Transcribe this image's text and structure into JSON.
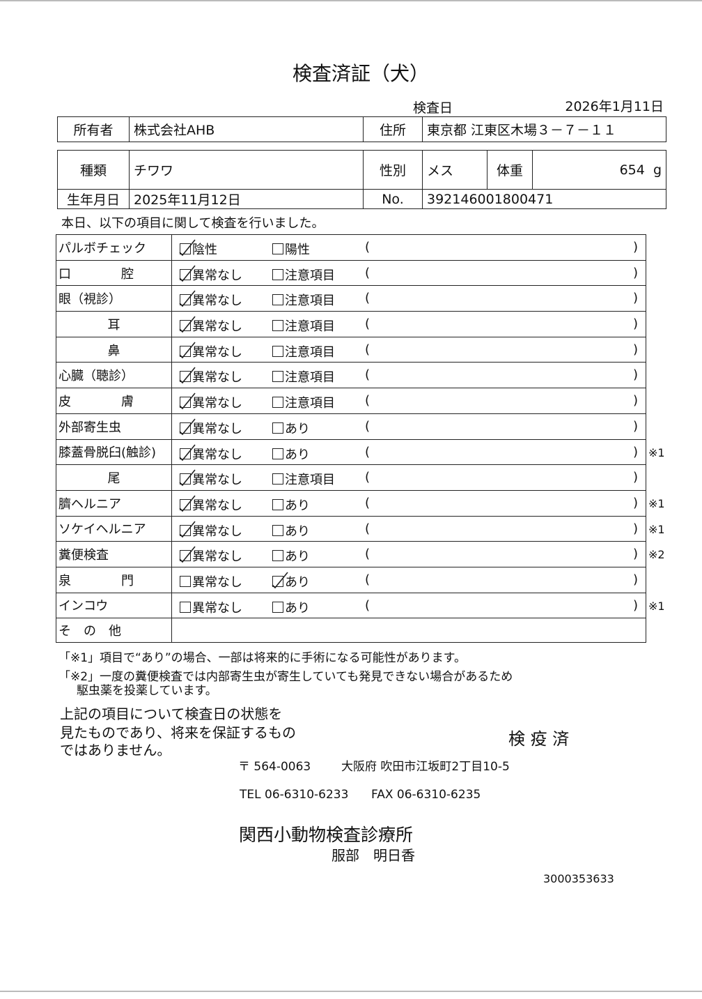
{
  "title": "検査済証（犬）",
  "exam_date_label": "検査日",
  "exam_date": "2026年1月11日",
  "owner": {
    "label": "所有者",
    "value": "株式会社AHB",
    "address_label": "住所",
    "address": "東京都 江東区木場３－７－１１"
  },
  "pet": {
    "breed_label": "種類",
    "breed": "チワワ",
    "sex_label": "性別",
    "sex": "メス",
    "weight_label": "体重",
    "weight": "654",
    "weight_unit": "g",
    "birth_label": "生年月日",
    "birth": "2025年11月12日",
    "no_label": "No.",
    "no": "392146001800471"
  },
  "intro": "本日、以下の項目に関して検査を行いました。",
  "checks": [
    {
      "label": "パルボチェック",
      "opt1": "陰性",
      "opt2": "陽性",
      "checked": 1,
      "note": ""
    },
    {
      "label": "口　　　　腔",
      "opt1": "異常なし",
      "opt2": "注意項目",
      "checked": 1,
      "note": ""
    },
    {
      "label": "眼（視診）",
      "opt1": "異常なし",
      "opt2": "注意項目",
      "checked": 1,
      "note": ""
    },
    {
      "label": "耳",
      "opt1": "異常なし",
      "opt2": "注意項目",
      "checked": 1,
      "note": ""
    },
    {
      "label": "鼻",
      "opt1": "異常なし",
      "opt2": "注意項目",
      "checked": 1,
      "note": ""
    },
    {
      "label": "心臓（聴診）",
      "opt1": "異常なし",
      "opt2": "注意項目",
      "checked": 1,
      "note": ""
    },
    {
      "label": "皮　　　　膚",
      "opt1": "異常なし",
      "opt2": "注意項目",
      "checked": 1,
      "note": ""
    },
    {
      "label": "外部寄生虫",
      "opt1": "異常なし",
      "opt2": "あり",
      "checked": 1,
      "note": ""
    },
    {
      "label": "膝蓋骨脱臼(触診)",
      "opt1": "異常なし",
      "opt2": "あり",
      "checked": 1,
      "note": "※1"
    },
    {
      "label": "尾",
      "opt1": "異常なし",
      "opt2": "注意項目",
      "checked": 1,
      "note": ""
    },
    {
      "label": "臍ヘルニア",
      "opt1": "異常なし",
      "opt2": "あり",
      "checked": 1,
      "note": "※1"
    },
    {
      "label": "ソケイヘルニア",
      "opt1": "異常なし",
      "opt2": "あり",
      "checked": 1,
      "note": "※1"
    },
    {
      "label": "糞便検査",
      "opt1": "異常なし",
      "opt2": "あり",
      "checked": 1,
      "note": "※2"
    },
    {
      "label": "泉　　　　門",
      "opt1": "異常なし",
      "opt2": "あり",
      "checked": 2,
      "note": ""
    },
    {
      "label": "インコウ",
      "opt1": "異常なし",
      "opt2": "あり",
      "checked": 0,
      "note": "※1"
    }
  ],
  "other_label": "そ　の　他",
  "paren_open": "(",
  "paren_close": ")",
  "footnote1": "「※1」項目で“あり”の場合、一部は将来的に手術になる可能性があります。",
  "footnote2a": "「※2」一度の糞便検査では内部寄生虫が寄生していても発見できない場合があるため",
  "footnote2b": "駆虫薬を投薬しています。",
  "disclaimer": [
    "上記の項目について検査日の状態を",
    "見たものであり、将来を保証するもの",
    "ではありません。"
  ],
  "stamp": "検 疫 済",
  "clinic": {
    "postal": "〒 564-0063",
    "address": "大阪府 吹田市江坂町2丁目10-5",
    "tel": "TEL 06-6310-6233",
    "fax": "FAX 06-6310-6235",
    "name": "関西小動物検査診療所",
    "person": "服部　明日香"
  },
  "serial": "3000353633"
}
